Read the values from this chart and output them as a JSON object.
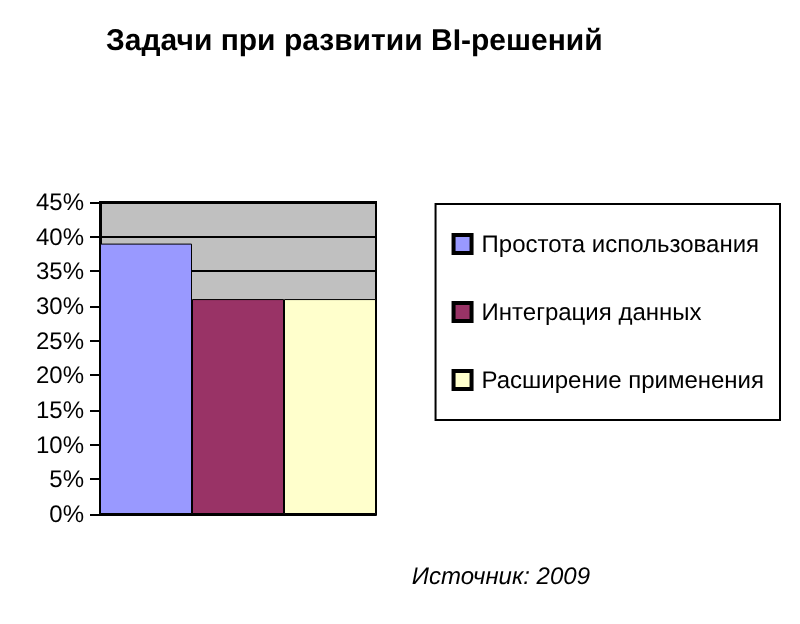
{
  "chart_data": {
    "type": "bar",
    "title": "Задачи при развитии BI-решений",
    "categories": [
      null
    ],
    "series": [
      {
        "name": "Простота использования",
        "color": "#9999ff",
        "values": [
          39
        ]
      },
      {
        "name": "Интеграция данных",
        "color": "#993366",
        "values": [
          31
        ]
      },
      {
        "name": "Расширение применения",
        "color": "#ffffcc",
        "values": [
          31
        ]
      }
    ],
    "ylim": [
      0,
      45
    ],
    "yticks": [
      {
        "value": 0,
        "label": "0%"
      },
      {
        "value": 5,
        "label": "5%"
      },
      {
        "value": 10,
        "label": "10%"
      },
      {
        "value": 15,
        "label": "15%"
      },
      {
        "value": 20,
        "label": "20%"
      },
      {
        "value": 25,
        "label": "25%"
      },
      {
        "value": 30,
        "label": "30%"
      },
      {
        "value": 35,
        "label": "35%"
      },
      {
        "value": 40,
        "label": "40%"
      },
      {
        "value": 45,
        "label": "45%"
      }
    ],
    "grid": "y",
    "legend": "right",
    "annotations": [
      "Источник: 2009"
    ]
  }
}
